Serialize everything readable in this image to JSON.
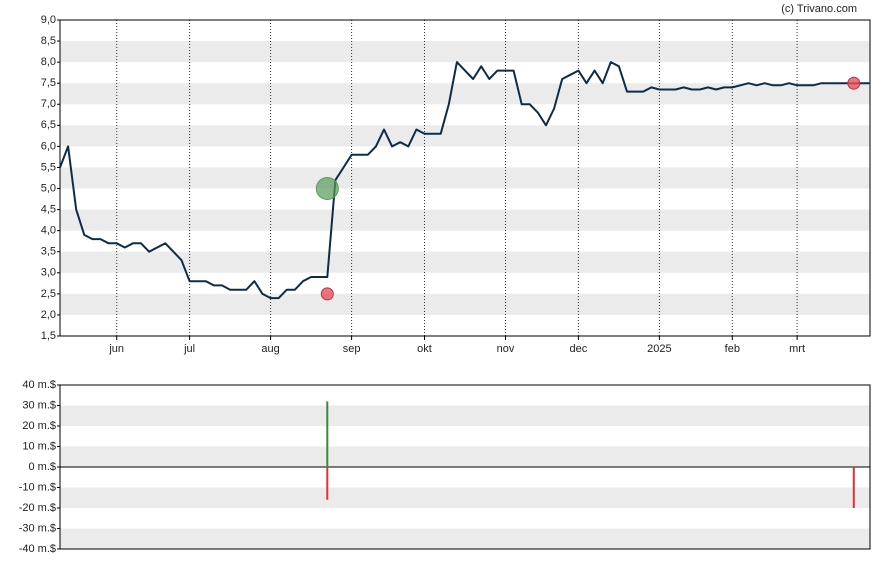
{
  "source": "(c) Trivano.com",
  "chart_data": [
    {
      "type": "line",
      "color": "#0d2c4a",
      "categories": [
        null,
        null,
        null,
        null,
        null,
        null,
        null,
        "jun",
        null,
        null,
        null,
        null,
        null,
        null,
        null,
        null,
        "jul",
        null,
        null,
        null,
        null,
        null,
        null,
        null,
        null,
        null,
        "aug",
        null,
        null,
        null,
        null,
        null,
        null,
        null,
        null,
        null,
        "sep",
        null,
        null,
        null,
        null,
        null,
        null,
        null,
        null,
        "okt",
        null,
        null,
        null,
        null,
        null,
        null,
        null,
        null,
        null,
        "nov",
        null,
        null,
        null,
        null,
        null,
        null,
        null,
        null,
        "dec",
        null,
        null,
        null,
        null,
        null,
        null,
        null,
        null,
        null,
        "2025",
        null,
        null,
        null,
        null,
        null,
        null,
        null,
        null,
        "feb",
        null,
        null,
        null,
        null,
        null,
        null,
        null,
        "mrt",
        null,
        null,
        null,
        null,
        null,
        null,
        null,
        null,
        null
      ],
      "values": [
        5.5,
        6.0,
        4.5,
        3.9,
        3.8,
        3.8,
        3.7,
        3.7,
        3.6,
        3.7,
        3.7,
        3.5,
        3.6,
        3.7,
        3.5,
        3.3,
        2.8,
        2.8,
        2.8,
        2.7,
        2.7,
        2.6,
        2.6,
        2.6,
        2.8,
        2.5,
        2.4,
        2.4,
        2.6,
        2.6,
        2.8,
        2.9,
        2.9,
        2.9,
        5.2,
        5.5,
        5.8,
        5.8,
        5.8,
        6.0,
        6.4,
        6.0,
        6.1,
        6.0,
        6.4,
        6.3,
        6.3,
        6.3,
        7.0,
        8.0,
        7.8,
        7.6,
        7.9,
        7.6,
        7.8,
        7.8,
        7.8,
        7.0,
        7.0,
        6.8,
        6.5,
        6.9,
        7.6,
        7.7,
        7.8,
        7.5,
        7.8,
        7.5,
        8.0,
        7.9,
        7.3,
        7.3,
        7.3,
        7.4,
        7.35,
        7.35,
        7.35,
        7.4,
        7.35,
        7.35,
        7.4,
        7.35,
        7.4,
        7.4,
        7.45,
        7.5,
        7.45,
        7.5,
        7.45,
        7.45,
        7.5,
        7.45,
        7.45,
        7.45,
        7.5,
        7.5,
        7.5,
        7.5,
        7.5,
        7.5,
        7.5
      ],
      "ylim": [
        1.5,
        9.0
      ],
      "yticks": [
        {
          "value": 1.5,
          "label": "1,5"
        },
        {
          "value": 2.0,
          "label": "2,0"
        },
        {
          "value": 2.5,
          "label": "2,5"
        },
        {
          "value": 3.0,
          "label": "3,0"
        },
        {
          "value": 3.5,
          "label": "3,5"
        },
        {
          "value": 4.0,
          "label": "4,0"
        },
        {
          "value": 4.5,
          "label": "4,5"
        },
        {
          "value": 5.0,
          "label": "5,0"
        },
        {
          "value": 5.5,
          "label": "5,5"
        },
        {
          "value": 6.0,
          "label": "6,0"
        },
        {
          "value": 6.5,
          "label": "6,5"
        },
        {
          "value": 7.0,
          "label": "7,0"
        },
        {
          "value": 7.5,
          "label": "7,5"
        },
        {
          "value": 8.0,
          "label": "8,0"
        },
        {
          "value": 8.5,
          "label": "8,5"
        },
        {
          "value": 9.0,
          "label": "9,0"
        }
      ],
      "buys": [
        {
          "x": 33,
          "y": 5.0
        }
      ],
      "sells": [
        {
          "x": 33,
          "y": 2.5
        },
        {
          "x": 98,
          "y": 7.5
        }
      ],
      "buy_color": "#5a9a5a",
      "sell_color": "#e8505c"
    },
    {
      "type": "bar",
      "bars": [
        {
          "x": 33,
          "value": 32,
          "color": "#3a8a3a"
        },
        {
          "x": 33,
          "value": -16,
          "color": "#e0303a"
        },
        {
          "x": 98,
          "value": -20,
          "color": "#e0303a"
        }
      ],
      "ylim": [
        -40,
        40
      ],
      "yticks": [
        {
          "value": -40,
          "label": "-40 m.$"
        },
        {
          "value": -30,
          "label": "-30 m.$"
        },
        {
          "value": -20,
          "label": "-20 m.$"
        },
        {
          "value": -10,
          "label": "-10 m.$"
        },
        {
          "value": 0,
          "label": "0 m.$"
        },
        {
          "value": 10,
          "label": "10 m.$"
        },
        {
          "value": 20,
          "label": "20 m.$"
        },
        {
          "value": 30,
          "label": "30 m.$"
        },
        {
          "value": 40,
          "label": "40 m.$"
        }
      ]
    }
  ]
}
